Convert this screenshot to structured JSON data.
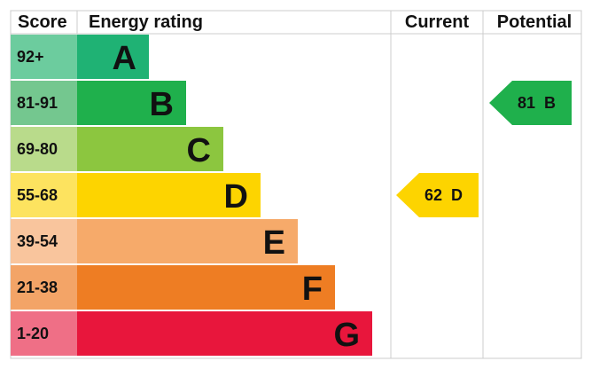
{
  "header": {
    "score": "Score",
    "energy_rating": "Energy rating",
    "current": "Current",
    "potential": "Potential"
  },
  "bands": [
    {
      "score": "92+",
      "rating": "A",
      "color": "#1fb274",
      "score_color": "#6ccc9e"
    },
    {
      "score": "81-91",
      "rating": "B",
      "color": "#1fb04c",
      "score_color": "#74c78f"
    },
    {
      "score": "69-80",
      "rating": "C",
      "color": "#8cc63f",
      "score_color": "#b9db8b"
    },
    {
      "score": "55-68",
      "rating": "D",
      "color": "#fdd400",
      "score_color": "#fde35f"
    },
    {
      "score": "39-54",
      "rating": "E",
      "color": "#f6aa6a",
      "score_color": "#f9c59d"
    },
    {
      "score": "21-38",
      "rating": "F",
      "color": "#ee7d23",
      "score_color": "#f3a467"
    },
    {
      "score": "1-20",
      "rating": "G",
      "color": "#e8163c",
      "score_color": "#ef6f86"
    }
  ],
  "current": {
    "value": 62,
    "rating": "D"
  },
  "potential": {
    "value": 81,
    "rating": "B"
  }
}
